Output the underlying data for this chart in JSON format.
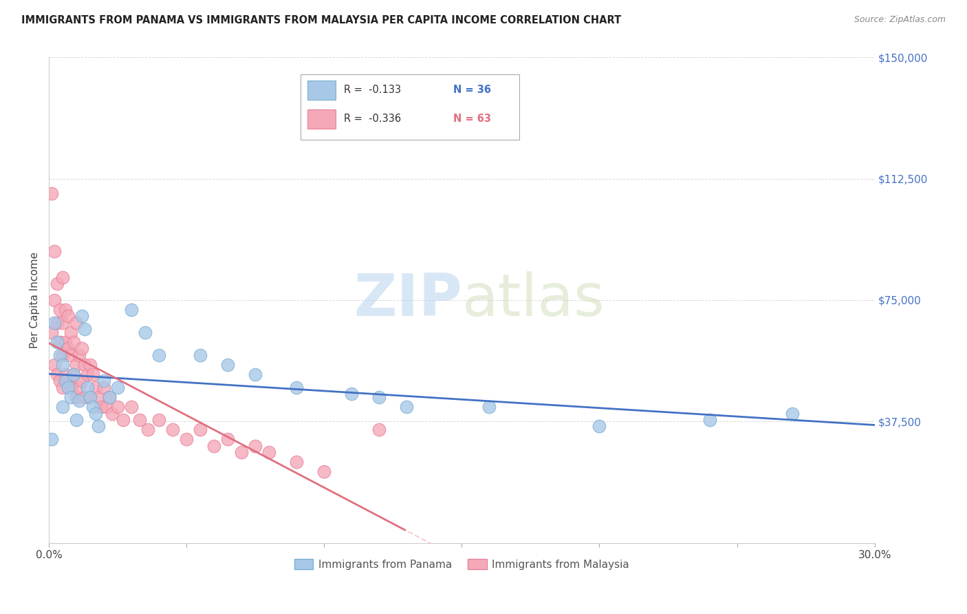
{
  "title": "IMMIGRANTS FROM PANAMA VS IMMIGRANTS FROM MALAYSIA PER CAPITA INCOME CORRELATION CHART",
  "source": "Source: ZipAtlas.com",
  "ylabel": "Per Capita Income",
  "xlim": [
    0.0,
    0.3
  ],
  "ylim": [
    0,
    150000
  ],
  "yticks": [
    0,
    37500,
    75000,
    112500,
    150000
  ],
  "ytick_labels": [
    "",
    "$37,500",
    "$75,000",
    "$112,500",
    "$150,000"
  ],
  "panama_color": "#a8c8e8",
  "malaysia_color": "#f4a8b8",
  "panama_edge": "#7aaed0",
  "malaysia_edge": "#e8809a",
  "line_panama_color": "#4472c4",
  "line_malaysia_color": "#e07080",
  "legend_R_panama": "R =  -0.133",
  "legend_N_panama": "N = 36",
  "legend_R_malaysia": "R =  -0.336",
  "legend_N_malaysia": "N = 63",
  "watermark_zip": "ZIP",
  "watermark_atlas": "atlas",
  "background_color": "#ffffff",
  "grid_color": "#d0d0d0",
  "right_axis_color": "#4472c4",
  "panama_data_x": [
    0.001,
    0.002,
    0.003,
    0.004,
    0.005,
    0.005,
    0.006,
    0.007,
    0.008,
    0.009,
    0.01,
    0.011,
    0.012,
    0.013,
    0.014,
    0.015,
    0.016,
    0.017,
    0.018,
    0.02,
    0.022,
    0.025,
    0.03,
    0.035,
    0.04,
    0.055,
    0.065,
    0.075,
    0.09,
    0.11,
    0.12,
    0.13,
    0.16,
    0.2,
    0.24,
    0.27
  ],
  "panama_data_y": [
    32000,
    68000,
    62000,
    58000,
    55000,
    42000,
    50000,
    48000,
    45000,
    52000,
    38000,
    44000,
    70000,
    66000,
    48000,
    45000,
    42000,
    40000,
    36000,
    50000,
    45000,
    48000,
    72000,
    65000,
    58000,
    58000,
    55000,
    52000,
    48000,
    46000,
    45000,
    42000,
    42000,
    36000,
    38000,
    40000
  ],
  "malaysia_data_x": [
    0.001,
    0.001,
    0.002,
    0.002,
    0.002,
    0.003,
    0.003,
    0.003,
    0.004,
    0.004,
    0.004,
    0.005,
    0.005,
    0.005,
    0.005,
    0.006,
    0.006,
    0.006,
    0.007,
    0.007,
    0.007,
    0.008,
    0.008,
    0.008,
    0.009,
    0.009,
    0.01,
    0.01,
    0.01,
    0.011,
    0.011,
    0.012,
    0.012,
    0.013,
    0.013,
    0.014,
    0.015,
    0.015,
    0.016,
    0.017,
    0.018,
    0.019,
    0.02,
    0.021,
    0.022,
    0.023,
    0.025,
    0.027,
    0.03,
    0.033,
    0.036,
    0.04,
    0.045,
    0.05,
    0.055,
    0.06,
    0.065,
    0.07,
    0.075,
    0.08,
    0.09,
    0.1,
    0.12
  ],
  "malaysia_data_y": [
    108000,
    65000,
    90000,
    75000,
    55000,
    80000,
    68000,
    52000,
    72000,
    62000,
    50000,
    82000,
    68000,
    58000,
    48000,
    72000,
    62000,
    52000,
    70000,
    60000,
    50000,
    65000,
    58000,
    48000,
    62000,
    52000,
    68000,
    55000,
    45000,
    58000,
    48000,
    60000,
    50000,
    55000,
    45000,
    52000,
    55000,
    45000,
    52000,
    48000,
    45000,
    42000,
    48000,
    42000,
    45000,
    40000,
    42000,
    38000,
    42000,
    38000,
    35000,
    38000,
    35000,
    32000,
    35000,
    30000,
    32000,
    28000,
    30000,
    28000,
    25000,
    22000,
    35000
  ]
}
